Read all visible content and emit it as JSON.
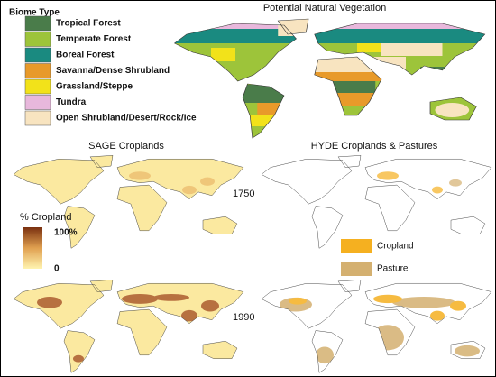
{
  "main_map": {
    "title": "Potential Natural Vegetation",
    "legend": {
      "title": "Biome Type",
      "items": [
        {
          "label": "Tropical Forest",
          "color": "#4a7c4a"
        },
        {
          "label": "Temperate Forest",
          "color": "#9dc43a"
        },
        {
          "label": "Boreal Forest",
          "color": "#1a8a80"
        },
        {
          "label": "Savanna/Dense Shrubland",
          "color": "#e89a2a"
        },
        {
          "label": "Grassland/Steppe",
          "color": "#f2e21a"
        },
        {
          "label": "Tundra",
          "color": "#e8b8dc"
        },
        {
          "label": "Open Shrubland/Desert/Rock/Ice",
          "color": "#f8e4c0"
        }
      ]
    }
  },
  "sage": {
    "title": "SAGE Croplands"
  },
  "hyde": {
    "title": "HYDE Croplands & Pastures",
    "legend": [
      {
        "label": "Cropland",
        "color": "#f5b020"
      },
      {
        "label": "Pasture",
        "color": "#d4b070"
      }
    ]
  },
  "years": [
    "1750",
    "1990"
  ],
  "cropland_scale": {
    "title": "% Cropland",
    "max_label": "100%",
    "min_label": "0"
  }
}
